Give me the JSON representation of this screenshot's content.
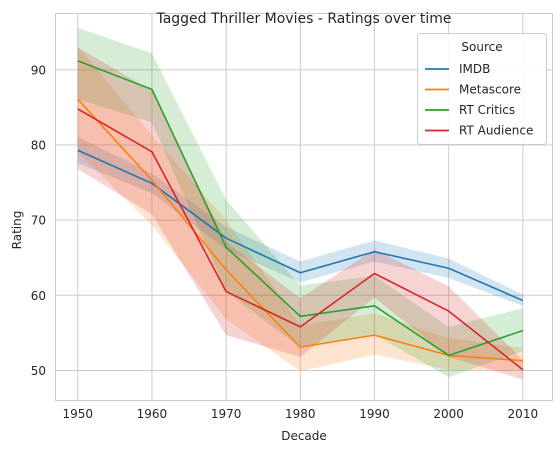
{
  "chart_data": {
    "type": "line",
    "title": "Tagged Thriller Movies - Ratings over time",
    "xlabel": "Decade",
    "ylabel": "Rating",
    "x": [
      1950,
      1960,
      1970,
      1980,
      1990,
      2000,
      2010
    ],
    "x_ticks": [
      "1950",
      "1960",
      "1970",
      "1980",
      "1990",
      "2000",
      "2010"
    ],
    "y_ticks": [
      "50",
      "60",
      "70",
      "80",
      "90"
    ],
    "xlim": [
      1947,
      2014
    ],
    "ylim": [
      46,
      97.5
    ],
    "grid": true,
    "legend": {
      "title": "Source",
      "placement": "top-right"
    },
    "series": [
      {
        "name": "IMDB",
        "color": "#1f77b4",
        "values": [
          79.3,
          74.9,
          67.6,
          63.0,
          65.8,
          63.6,
          59.3
        ],
        "band_low": [
          77.6,
          73.6,
          66.1,
          61.7,
          64.5,
          62.3,
          58.6
        ],
        "band_high": [
          81.1,
          76.2,
          69.1,
          64.5,
          67.3,
          64.9,
          60.1
        ]
      },
      {
        "name": "Metascore",
        "color": "#ff7f0e",
        "values": [
          86.1,
          75.3,
          63.4,
          53.1,
          54.7,
          52.0,
          51.3
        ],
        "band_low": [
          79.1,
          69.3,
          56.8,
          49.9,
          52.1,
          50.1,
          50.0
        ],
        "band_high": [
          93.1,
          81.3,
          70.0,
          56.0,
          57.6,
          54.3,
          53.0
        ]
      },
      {
        "name": "RT Critics",
        "color": "#2ca02c",
        "values": [
          91.2,
          87.4,
          66.4,
          57.2,
          58.6,
          52.0,
          55.3
        ],
        "band_low": [
          86.1,
          83.0,
          60.5,
          53.1,
          54.8,
          49.1,
          52.6
        ],
        "band_high": [
          95.6,
          92.2,
          72.7,
          61.3,
          62.6,
          55.8,
          58.3
        ]
      },
      {
        "name": "RT Audience",
        "color": "#d62728",
        "values": [
          84.8,
          79.1,
          60.5,
          55.8,
          62.9,
          57.9,
          50.1
        ],
        "band_low": [
          76.8,
          70.8,
          54.7,
          51.8,
          59.7,
          51.8,
          48.8
        ],
        "band_high": [
          93.0,
          87.2,
          67.1,
          59.6,
          66.1,
          61.2,
          51.4
        ]
      }
    ]
  }
}
